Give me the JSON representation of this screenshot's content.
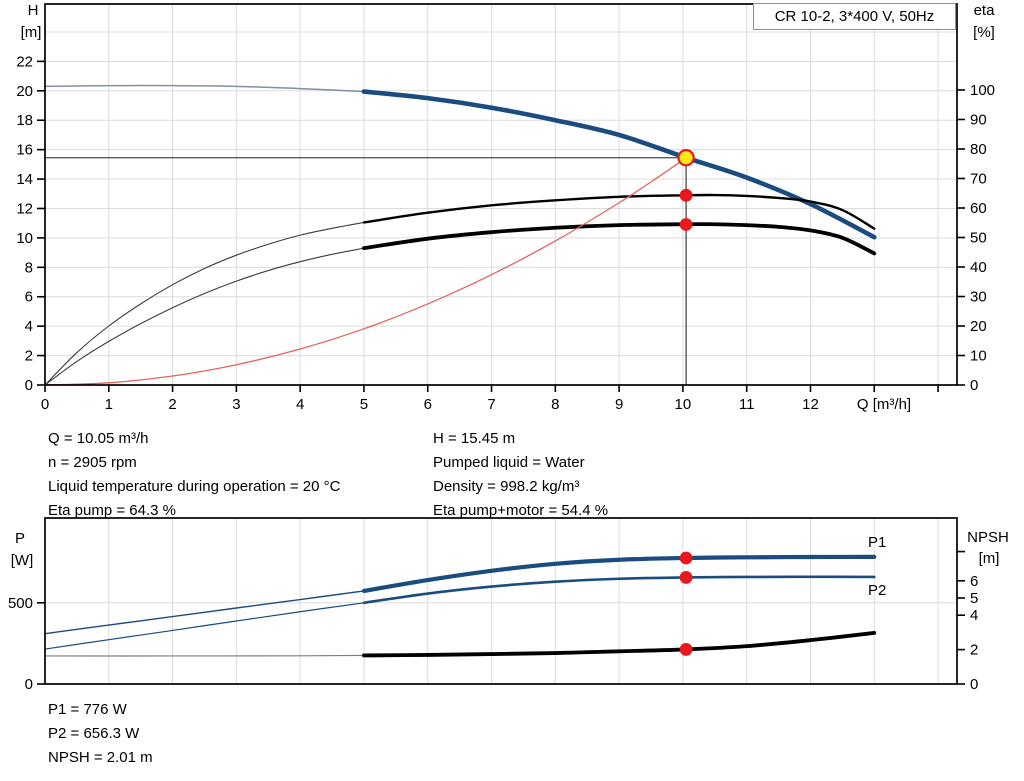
{
  "title_box": {
    "label": "CR 10-2, 3*400 V, 50Hz"
  },
  "info_top": {
    "left": [
      "Q = 10.05 m³/h",
      "n = 2905 rpm",
      "Liquid temperature during operation = 20 °C",
      "Eta pump = 64.3 %"
    ],
    "right": [
      "H = 15.45 m",
      "Pumped liquid = Water",
      "Density = 998.2 kg/m³",
      "Eta pump+motor = 54.4 %"
    ]
  },
  "info_bottom": {
    "lines": [
      "P1 = 776 W",
      "P2 = 656.3 W",
      "NPSH = 2.01 m"
    ]
  },
  "colors": {
    "grid": "#dcdcdc",
    "frame": "#000000",
    "blue": "#1a4c7f",
    "blue_thin": "#7f8fa6",
    "eta_thin": "#3c3c3c",
    "black": "#000000",
    "system_red": "#e4645c",
    "dot_red": "#e8181f",
    "duty_yellow": "#ffe814",
    "ref_line": "#4a4a4a",
    "npsh_thin": "#7d7d7d"
  },
  "chart_data": [
    {
      "type": "line",
      "title": "CR 10-2, 3*400 V, 50Hz",
      "x_label": "Q [m³/h]",
      "y_left_label": "H [m]",
      "y_right_label": "eta [%]",
      "x_range": [
        0,
        14.3
      ],
      "y_left_range": [
        0,
        25.9
      ],
      "y_right_range": [
        0,
        100
      ],
      "area": {
        "x0": 45,
        "y0": 4,
        "x1": 957,
        "y1": 385
      },
      "x_scale": {
        "origin": 45,
        "ppu": 63.79
      },
      "left_scale": {
        "origin": 385,
        "ppu": 14.71
      },
      "right_scale": {
        "origin": 385,
        "ppu": 2.95
      },
      "grid": {
        "x": [
          1,
          2,
          3,
          4,
          5,
          6,
          7,
          8,
          9,
          10,
          11,
          12,
          13,
          14
        ],
        "left": [
          2,
          4,
          6,
          8,
          10,
          12,
          14,
          16,
          18,
          20,
          22,
          24
        ]
      },
      "ticks": {
        "x": [
          {
            "v": 0,
            "label": "0"
          },
          {
            "v": 1,
            "label": "1"
          },
          {
            "v": 2,
            "label": "2"
          },
          {
            "v": 3,
            "label": "3"
          },
          {
            "v": 4,
            "label": "4"
          },
          {
            "v": 5,
            "label": "5"
          },
          {
            "v": 6,
            "label": "6"
          },
          {
            "v": 7,
            "label": "7"
          },
          {
            "v": 8,
            "label": "8"
          },
          {
            "v": 9,
            "label": "9"
          },
          {
            "v": 10,
            "label": "10"
          },
          {
            "v": 11,
            "label": "11"
          },
          {
            "v": 12,
            "label": "12"
          },
          {
            "v": 13,
            "label": ""
          },
          {
            "v": 14,
            "label": ""
          }
        ],
        "left": [
          {
            "v": 0,
            "label": "0"
          },
          {
            "v": 2,
            "label": "2"
          },
          {
            "v": 4,
            "label": "4"
          },
          {
            "v": 6,
            "label": "6"
          },
          {
            "v": 8,
            "label": "8"
          },
          {
            "v": 10,
            "label": "10"
          },
          {
            "v": 12,
            "label": "12"
          },
          {
            "v": 14,
            "label": "14"
          },
          {
            "v": 16,
            "label": "16"
          },
          {
            "v": 18,
            "label": "18"
          },
          {
            "v": 20,
            "label": "20"
          },
          {
            "v": 22,
            "label": "22"
          }
        ],
        "right": [
          {
            "v": 0,
            "label": "0"
          },
          {
            "v": 10,
            "label": "10"
          },
          {
            "v": 20,
            "label": "20"
          },
          {
            "v": 30,
            "label": "30"
          },
          {
            "v": 40,
            "label": "40"
          },
          {
            "v": 50,
            "label": "50"
          },
          {
            "v": 60,
            "label": "60"
          },
          {
            "v": 70,
            "label": "70"
          },
          {
            "v": 80,
            "label": "80"
          },
          {
            "v": 90,
            "label": "90"
          },
          {
            "v": 100,
            "label": "100"
          }
        ]
      },
      "ref_lines": [
        {
          "type": "h",
          "axis": "left",
          "v": 15.45,
          "q1": 0,
          "q2": 10.05,
          "color": "#4a4a4a",
          "width": 1.3
        },
        {
          "type": "v",
          "axis": "left",
          "q": 10.05,
          "v1": 15.45,
          "v2": 0,
          "color": "#4a4a4a",
          "width": 1.3
        }
      ],
      "series": [
        {
          "name": "head-curve-thin",
          "axis": "left",
          "color": "#7f8fa6",
          "width": 1.5,
          "points": [
            [
              0,
              20.3
            ],
            [
              1,
              20.35
            ],
            [
              2,
              20.35
            ],
            [
              3,
              20.3
            ],
            [
              4,
              20.15
            ],
            [
              5,
              19.95
            ]
          ]
        },
        {
          "name": "head-curve",
          "axis": "left",
          "color": "#1a4c7f",
          "width": 4.6,
          "points": [
            [
              5,
              19.95
            ],
            [
              6,
              19.5
            ],
            [
              7,
              18.85
            ],
            [
              8,
              18.0
            ],
            [
              9,
              17.0
            ],
            [
              10.05,
              15.45
            ],
            [
              11,
              14.1
            ],
            [
              12,
              12.3
            ],
            [
              13,
              10.05
            ]
          ]
        },
        {
          "name": "eta-pump-curve-thin",
          "axis": "right",
          "color": "#3c3c3c",
          "width": 1.1,
          "points": [
            [
              0,
              0
            ],
            [
              0.5,
              11
            ],
            [
              1,
              20
            ],
            [
              1.5,
              27.5
            ],
            [
              2,
              34
            ],
            [
              2.5,
              39.5
            ],
            [
              3,
              44
            ],
            [
              3.5,
              47.7
            ],
            [
              4,
              50.8
            ],
            [
              4.5,
              53.1
            ],
            [
              5,
              55.1
            ]
          ]
        },
        {
          "name": "eta-pump-curve",
          "axis": "right",
          "color": "#000000",
          "width": 2.4,
          "points": [
            [
              5,
              55.1
            ],
            [
              6,
              58.4
            ],
            [
              7,
              60.9
            ],
            [
              8,
              62.6
            ],
            [
              9,
              63.8
            ],
            [
              10,
              64.3
            ],
            [
              10.5,
              64.4
            ],
            [
              11,
              64.1
            ],
            [
              11.5,
              63.4
            ],
            [
              12,
              62.2
            ],
            [
              12.5,
              59.3
            ],
            [
              13,
              53
            ]
          ]
        },
        {
          "name": "eta-pump-motor-curve-thin",
          "axis": "right",
          "color": "#3c3c3c",
          "width": 1.1,
          "points": [
            [
              0,
              0
            ],
            [
              0.5,
              8
            ],
            [
              1,
              14.8
            ],
            [
              1.5,
              20.8
            ],
            [
              2,
              26.2
            ],
            [
              2.5,
              31
            ],
            [
              3,
              35.2
            ],
            [
              3.5,
              38.8
            ],
            [
              4,
              41.8
            ],
            [
              4.5,
              44.3
            ],
            [
              5,
              46.4
            ]
          ]
        },
        {
          "name": "eta-pump-motor-curve",
          "axis": "right",
          "color": "#000000",
          "width": 3.8,
          "points": [
            [
              5,
              46.4
            ],
            [
              6,
              49.6
            ],
            [
              7,
              51.8
            ],
            [
              8,
              53.3
            ],
            [
              9,
              54.2
            ],
            [
              10,
              54.5
            ],
            [
              10.5,
              54.5
            ],
            [
              11,
              54.2
            ],
            [
              11.5,
              53.6
            ],
            [
              12,
              52.4
            ],
            [
              12.5,
              49.9
            ],
            [
              13,
              44.6
            ]
          ]
        },
        {
          "name": "system-curve",
          "axis": "left",
          "color": "#e4645c",
          "width": 1.3,
          "points": [
            [
              0,
              0
            ],
            [
              1,
              0.15
            ],
            [
              2,
              0.61
            ],
            [
              3,
              1.38
            ],
            [
              4,
              2.45
            ],
            [
              5,
              3.82
            ],
            [
              6,
              5.51
            ],
            [
              7,
              7.5
            ],
            [
              8,
              9.79
            ],
            [
              9,
              12.39
            ],
            [
              9.6,
              14.1
            ],
            [
              10.05,
              15.45
            ]
          ]
        }
      ],
      "markers": [
        {
          "name": "eta-pump-point",
          "axis": "right",
          "q": 10.05,
          "v": 64.3,
          "r": 6.4,
          "fill": "#e8181f",
          "stroke": "none",
          "sw": 0,
          "interactable": false
        },
        {
          "name": "eta-pump-motor-point",
          "axis": "right",
          "q": 10.05,
          "v": 54.4,
          "r": 6.4,
          "fill": "#e8181f",
          "stroke": "none",
          "sw": 0,
          "interactable": false
        },
        {
          "name": "duty-point",
          "axis": "left",
          "q": 10.05,
          "v": 15.45,
          "r": 7.6,
          "fill": "#ffe814",
          "stroke": "#e8181f",
          "sw": 2.2,
          "interactable": true
        }
      ],
      "labels": [
        {
          "text": "H",
          "x": 33,
          "y": 15,
          "anchor": "middle",
          "fill": "#000"
        },
        {
          "text": "[m]",
          "x": 31,
          "y": 37,
          "anchor": "middle",
          "fill": "#000"
        },
        {
          "text": "eta",
          "x": 984,
          "y": 15,
          "anchor": "middle",
          "fill": "#000"
        },
        {
          "text": "[%]",
          "x": 984,
          "y": 37,
          "anchor": "middle",
          "fill": "#000"
        },
        {
          "text": "Q [m³/h]",
          "x": 884,
          "y": 409,
          "anchor": "middle",
          "fill": "#000"
        }
      ]
    },
    {
      "type": "line",
      "title": "",
      "x_label": "",
      "y_left_label": "P [W]",
      "y_right_label": "NPSH [m]",
      "x_range": [
        0,
        14.3
      ],
      "y_left_range": [
        0,
        1022
      ],
      "y_right_range": [
        0,
        9.65
      ],
      "area": {
        "x0": 45,
        "y0": 518,
        "x1": 957,
        "y1": 684
      },
      "x_scale": {
        "origin": 45,
        "ppu": 63.79
      },
      "left_scale": {
        "origin": 684,
        "ppu": 0.1624
      },
      "right_scale": {
        "origin": 684,
        "ppu": 17.2
      },
      "grid": {
        "x": [
          1,
          2,
          3,
          4,
          5,
          6,
          7,
          8,
          9,
          10,
          11,
          12,
          13,
          14
        ],
        "left": [
          500
        ]
      },
      "ticks": {
        "x": [],
        "left": [
          {
            "v": 0,
            "label": "0"
          },
          {
            "v": 500,
            "label": "500"
          }
        ],
        "right": [
          {
            "v": 0,
            "label": "0"
          },
          {
            "v": 2,
            "label": "2"
          },
          {
            "v": 4,
            "label": "4"
          },
          {
            "v": 5,
            "label": "5"
          },
          {
            "v": 6,
            "label": "6"
          },
          {
            "v": 7.7,
            "label": ""
          }
        ]
      },
      "ref_lines": [],
      "series": [
        {
          "name": "p1-curve-thin",
          "axis": "left",
          "color": "#1a4c7f",
          "width": 1.4,
          "points": [
            [
              0,
              310
            ],
            [
              1,
              363
            ],
            [
              2,
              415
            ],
            [
              3,
              468
            ],
            [
              4,
              520
            ],
            [
              5,
              573
            ]
          ]
        },
        {
          "name": "p1-curve",
          "axis": "left",
          "color": "#1a4c7f",
          "width": 4.2,
          "points": [
            [
              5,
              573
            ],
            [
              6,
              640
            ],
            [
              7,
              697
            ],
            [
              8,
              740
            ],
            [
              9,
              765
            ],
            [
              10.05,
              776
            ],
            [
              11,
              780
            ],
            [
              12,
              782
            ],
            [
              13,
              783
            ]
          ]
        },
        {
          "name": "p2-curve-thin",
          "axis": "left",
          "color": "#1a4c7f",
          "width": 1.2,
          "points": [
            [
              0,
              215
            ],
            [
              1,
              273
            ],
            [
              2,
              330
            ],
            [
              3,
              388
            ],
            [
              4,
              445
            ],
            [
              5,
              500
            ]
          ]
        },
        {
          "name": "p2-curve",
          "axis": "left",
          "color": "#1a4c7f",
          "width": 2.6,
          "points": [
            [
              5,
              500
            ],
            [
              6,
              557
            ],
            [
              7,
              600
            ],
            [
              8,
              630
            ],
            [
              9,
              648
            ],
            [
              10.05,
              656.3
            ],
            [
              11,
              659
            ],
            [
              12,
              660
            ],
            [
              13,
              659
            ]
          ]
        },
        {
          "name": "npsh-curve-thin",
          "axis": "right",
          "color": "#7d7d7d",
          "width": 1.2,
          "points": [
            [
              0,
              1.63
            ],
            [
              2,
              1.63
            ],
            [
              4,
              1.64
            ],
            [
              5,
              1.66
            ]
          ]
        },
        {
          "name": "npsh-curve",
          "axis": "right",
          "color": "#000000",
          "width": 3.8,
          "points": [
            [
              5,
              1.66
            ],
            [
              6,
              1.69
            ],
            [
              7,
              1.74
            ],
            [
              8,
              1.8
            ],
            [
              9,
              1.9
            ],
            [
              10.05,
              2.01
            ],
            [
              11,
              2.2
            ],
            [
              12,
              2.55
            ],
            [
              13,
              2.97
            ]
          ]
        }
      ],
      "markers": [
        {
          "name": "p1-point",
          "axis": "left",
          "q": 10.05,
          "v": 776,
          "r": 6.4,
          "fill": "#e8181f",
          "stroke": "none",
          "sw": 0,
          "interactable": false
        },
        {
          "name": "p2-point",
          "axis": "left",
          "q": 10.05,
          "v": 656.3,
          "r": 6.4,
          "fill": "#e8181f",
          "stroke": "none",
          "sw": 0,
          "interactable": false
        },
        {
          "name": "npsh-point",
          "axis": "right",
          "q": 10.05,
          "v": 2.01,
          "r": 6.4,
          "fill": "#e8181f",
          "stroke": "none",
          "sw": 0,
          "interactable": false
        }
      ],
      "labels": [
        {
          "text": "P",
          "x": 20,
          "y": 543,
          "anchor": "middle",
          "fill": "#000"
        },
        {
          "text": "[W]",
          "x": 22,
          "y": 565,
          "anchor": "middle",
          "fill": "#000"
        },
        {
          "text": "NPSH",
          "x": 988,
          "y": 542,
          "anchor": "middle",
          "fill": "#000"
        },
        {
          "text": "[m]",
          "x": 989,
          "y": 563,
          "anchor": "middle",
          "fill": "#000"
        },
        {
          "text": "P1",
          "x": 868,
          "y": 547,
          "anchor": "start",
          "fill": "#1a4c7f"
        },
        {
          "text": "P2",
          "x": 868,
          "y": 595,
          "anchor": "start",
          "fill": "#1a4c7f"
        }
      ]
    }
  ]
}
